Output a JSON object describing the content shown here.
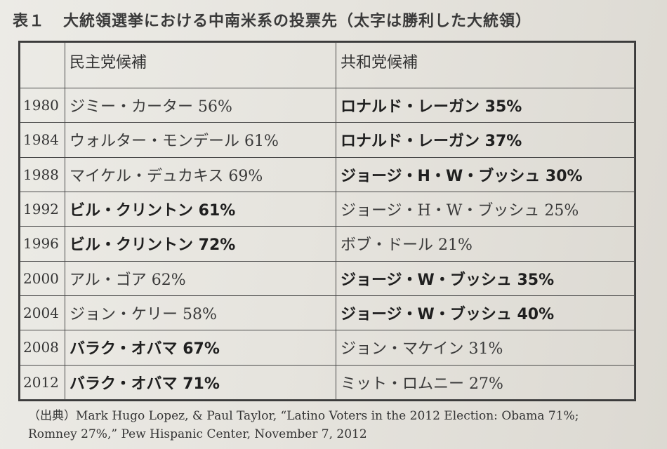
{
  "caption": {
    "label": "表１",
    "text": "大統領選挙における中南米系の投票先（太字は勝利した大統領）"
  },
  "table": {
    "headers": [
      "",
      "民主党候補",
      "共和党候補"
    ],
    "rows": [
      {
        "year": "1980",
        "dem": "ジミー・カーター 56%",
        "dem_bold": false,
        "rep": "ロナルド・レーガン 35%",
        "rep_bold": true
      },
      {
        "year": "1984",
        "dem": "ウォルター・モンデール 61%",
        "dem_bold": false,
        "rep": "ロナルド・レーガン 37%",
        "rep_bold": true
      },
      {
        "year": "1988",
        "dem": "マイケル・デュカキス 69%",
        "dem_bold": false,
        "rep": "ジョージ・H・W・ブッシュ 30%",
        "rep_bold": true
      },
      {
        "year": "1992",
        "dem": "ビル・クリントン 61%",
        "dem_bold": true,
        "rep": "ジョージ・H・W・ブッシュ 25%",
        "rep_bold": false
      },
      {
        "year": "1996",
        "dem": "ビル・クリントン 72%",
        "dem_bold": true,
        "rep": "ボブ・ドール 21%",
        "rep_bold": false
      },
      {
        "year": "2000",
        "dem": "アル・ゴア 62%",
        "dem_bold": false,
        "rep": "ジョージ・W・ブッシュ 35%",
        "rep_bold": true
      },
      {
        "year": "2004",
        "dem": "ジョン・ケリー 58%",
        "dem_bold": false,
        "rep": "ジョージ・W・ブッシュ 40%",
        "rep_bold": true
      },
      {
        "year": "2008",
        "dem": "バラク・オバマ 67%",
        "dem_bold": true,
        "rep": "ジョン・マケイン 31%",
        "rep_bold": false
      },
      {
        "year": "2012",
        "dem": "バラク・オバマ 71%",
        "dem_bold": true,
        "rep": "ミット・ロムニー 27%",
        "rep_bold": false
      }
    ]
  },
  "source": {
    "line1": "（出典）Mark Hugo Lopez, & Paul Taylor, “Latino Voters in the 2012 Election: Obama 71%;",
    "line2": "Romney 27%,” Pew Hispanic Center, November 7, 2012"
  }
}
